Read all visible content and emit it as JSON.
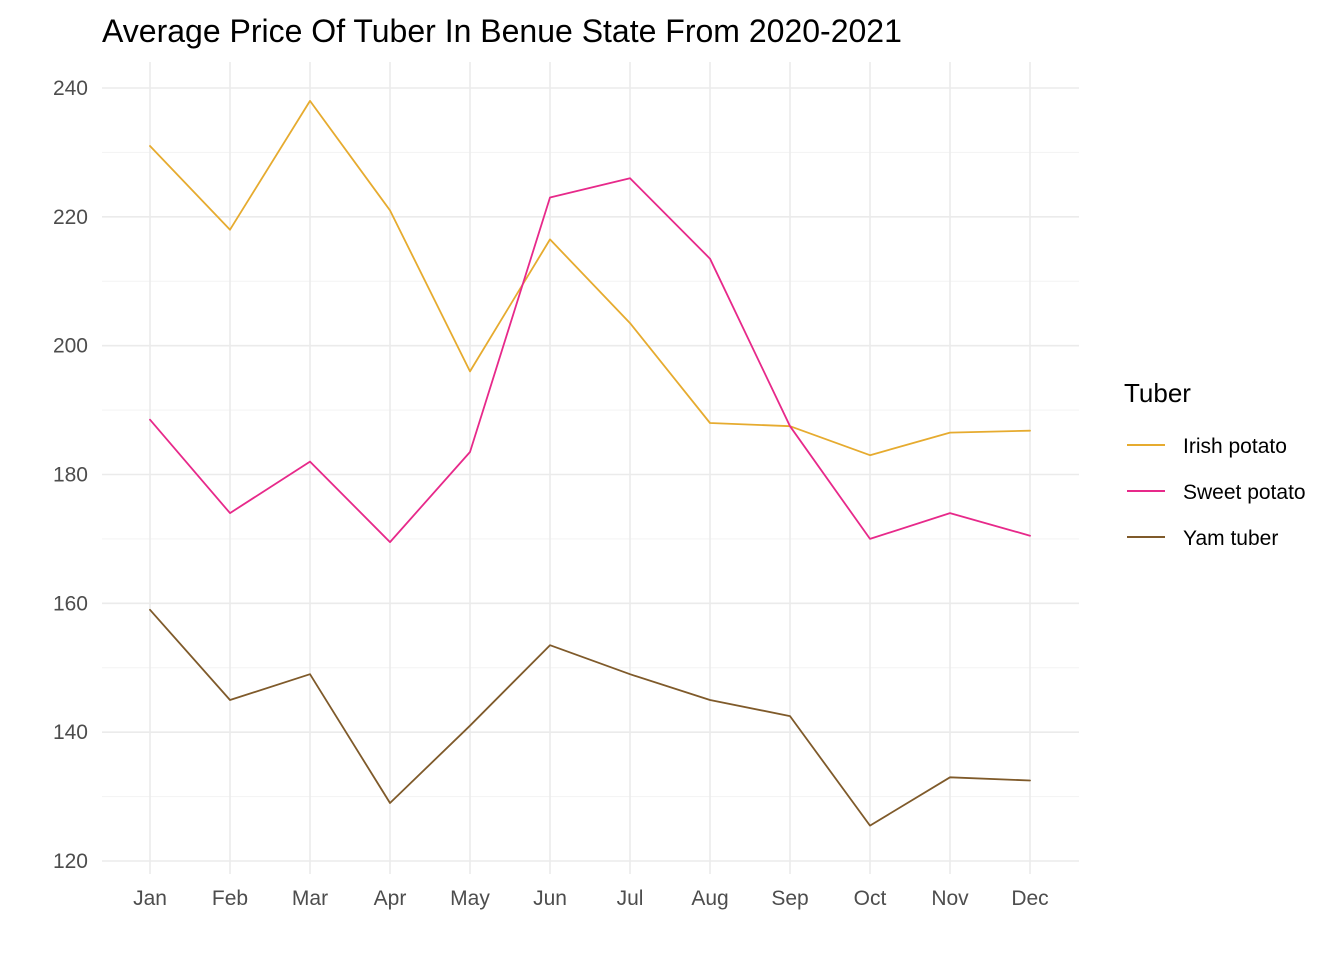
{
  "chart_data": {
    "type": "line",
    "title": "Average Price Of Tuber In Benue State From 2020-2021",
    "xlabel": "",
    "ylabel": "",
    "categories": [
      "Jan",
      "Feb",
      "Mar",
      "Apr",
      "May",
      "Jun",
      "Jul",
      "Aug",
      "Sep",
      "Oct",
      "Nov",
      "Dec"
    ],
    "ylim": [
      120,
      240
    ],
    "yticks": [
      "120",
      "140",
      "160",
      "180",
      "200",
      "220",
      "240"
    ],
    "grid": true,
    "legend": {
      "title": "Tuber",
      "position": "right"
    },
    "series": [
      {
        "name": "Irish potato",
        "color": "#E6AB2F",
        "values": [
          231,
          218,
          238,
          221,
          196,
          216.5,
          203.5,
          188,
          187.5,
          183,
          186.5,
          186.8
        ]
      },
      {
        "name": "Sweet potato",
        "color": "#E7298A",
        "values": [
          188.5,
          174,
          182,
          169.5,
          183.5,
          223,
          226,
          213.5,
          187.5,
          170,
          174,
          170.5
        ]
      },
      {
        "name": "Yam tuber",
        "color": "#7F5A2A",
        "values": [
          159,
          145,
          149,
          129,
          141,
          153.5,
          149,
          145,
          142.5,
          125.5,
          133,
          132.5
        ]
      }
    ]
  }
}
